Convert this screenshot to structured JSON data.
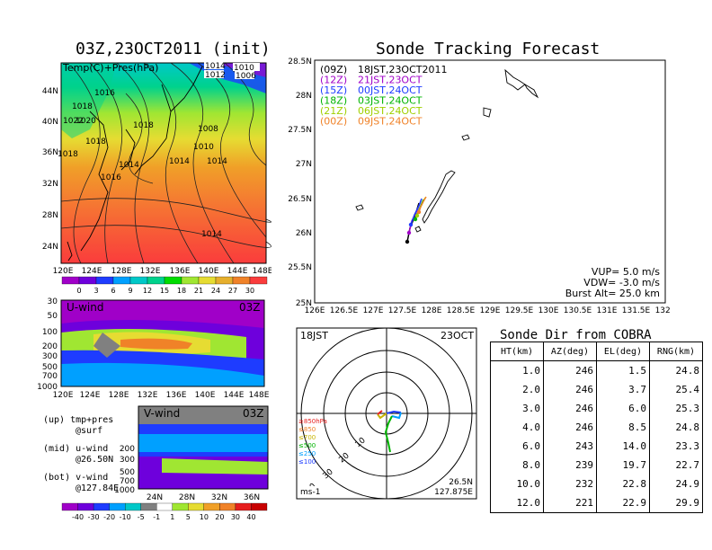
{
  "left": {
    "map_title": "03Z,23OCT2011 (init)",
    "map_label": "Temp(C)+Pres(hPa)",
    "map_lat_ticks": [
      "44N",
      "40N",
      "36N",
      "32N",
      "28N",
      "24N"
    ],
    "map_lon_ticks": [
      "120E",
      "124E",
      "128E",
      "132E",
      "136E",
      "140E",
      "144E",
      "148E"
    ],
    "pressure_labels": [
      "1014",
      "1012",
      "1010",
      "1008",
      "1006",
      "1016",
      "1018",
      "1018",
      "1018",
      "1018",
      "1016",
      "1014",
      "1014",
      "1014",
      "1010",
      "1008",
      "1014",
      "1020",
      "1022"
    ],
    "temp_colorbar": [
      "0",
      "3",
      "6",
      "9",
      "12",
      "15",
      "18",
      "21",
      "24",
      "27",
      "30"
    ],
    "temp_colors": [
      "#a000c8",
      "#6e00dc",
      "#1e3cff",
      "#00a0ff",
      "#00c8c8",
      "#00d28c",
      "#00dc00",
      "#a0e632",
      "#e6dc32",
      "#e6af2d",
      "#f08228",
      "#fa3c3c"
    ],
    "uwind_label": "U-wind",
    "uwind_time": "03Z",
    "uwind_y_ticks": [
      "30",
      "50",
      "100",
      "200",
      "300",
      "500",
      "700",
      "1000"
    ],
    "vwind_label": "V-wind",
    "vwind_time": "03Z",
    "vwind_y_ticks": [
      "200",
      "300",
      "500",
      "700",
      "1000"
    ],
    "vwind_x_ticks": [
      "24N",
      "28N",
      "32N",
      "36N"
    ],
    "wind_colorbar": [
      "-40",
      "-30",
      "-20",
      "-10",
      "-5",
      "-1",
      "1",
      "5",
      "10",
      "20",
      "30",
      "40"
    ],
    "notes": {
      "up": "(up) tmp+pres",
      "up2": "@surf",
      "mid": "(mid) u-wind",
      "mid2": "@26.50N",
      "bot": "(bot) v-wind",
      "bot2": "@127.84E"
    }
  },
  "tracking": {
    "title": "Sonde Tracking Forecast",
    "lat_ticks": [
      "28.5N",
      "28N",
      "27.5N",
      "27N",
      "26.5N",
      "26N",
      "25.5N",
      "25N"
    ],
    "lon_ticks": [
      "126E",
      "126.5E",
      "127E",
      "127.5E",
      "128E",
      "128.5E",
      "129E",
      "129.5E",
      "130E",
      "130.5E",
      "131E",
      "131.5E",
      "132E"
    ],
    "legend": [
      {
        "code": "(09Z)",
        "time": "18JST,23OCT2011",
        "color": "#000000"
      },
      {
        "code": "(12Z)",
        "time": "21JST,23OCT",
        "color": "#a000c8"
      },
      {
        "code": "(15Z)",
        "time": "00JST,24OCT",
        "color": "#1e3cff"
      },
      {
        "code": "(18Z)",
        "time": "03JST,24OCT",
        "color": "#00b400"
      },
      {
        "code": "(21Z)",
        "time": "06JST,24OCT",
        "color": "#a0d000"
      },
      {
        "code": "(00Z)",
        "time": "09JST,24OCT",
        "color": "#f08228"
      }
    ],
    "params": {
      "vup": "VUP= 5.0 m/s",
      "vdw": "VDW= -3.0 m/s",
      "burst": "Burst Alt= 25.0 km"
    }
  },
  "polar": {
    "time": "18JST",
    "date": "23OCT",
    "range_labels": [
      "10",
      "20",
      "30",
      "40"
    ],
    "levels": [
      "≥850hPa",
      "≤850",
      "≤700",
      "≤500",
      "≤250",
      "≤100"
    ],
    "level_colors": [
      "#e61e1e",
      "#f08228",
      "#c8b400",
      "#00b400",
      "#00a0ff",
      "#1e3cff"
    ],
    "unit": "ms-1",
    "lat": "26.5N",
    "lon": "127.875E"
  },
  "cobra": {
    "title": "Sonde Dir from COBRA",
    "headers": [
      "HT(km)",
      "AZ(deg)",
      "EL(deg)",
      "RNG(km)"
    ],
    "rows": [
      [
        "1.0",
        "246",
        "1.5",
        "24.8"
      ],
      [
        "2.0",
        "246",
        "3.7",
        "25.4"
      ],
      [
        "3.0",
        "246",
        "6.0",
        "25.3"
      ],
      [
        "4.0",
        "246",
        "8.5",
        "24.8"
      ],
      [
        "6.0",
        "243",
        "14.0",
        "23.3"
      ],
      [
        "8.0",
        "239",
        "19.7",
        "22.7"
      ],
      [
        "10.0",
        "232",
        "22.8",
        "24.9"
      ],
      [
        "12.0",
        "221",
        "22.9",
        "29.9"
      ]
    ]
  }
}
